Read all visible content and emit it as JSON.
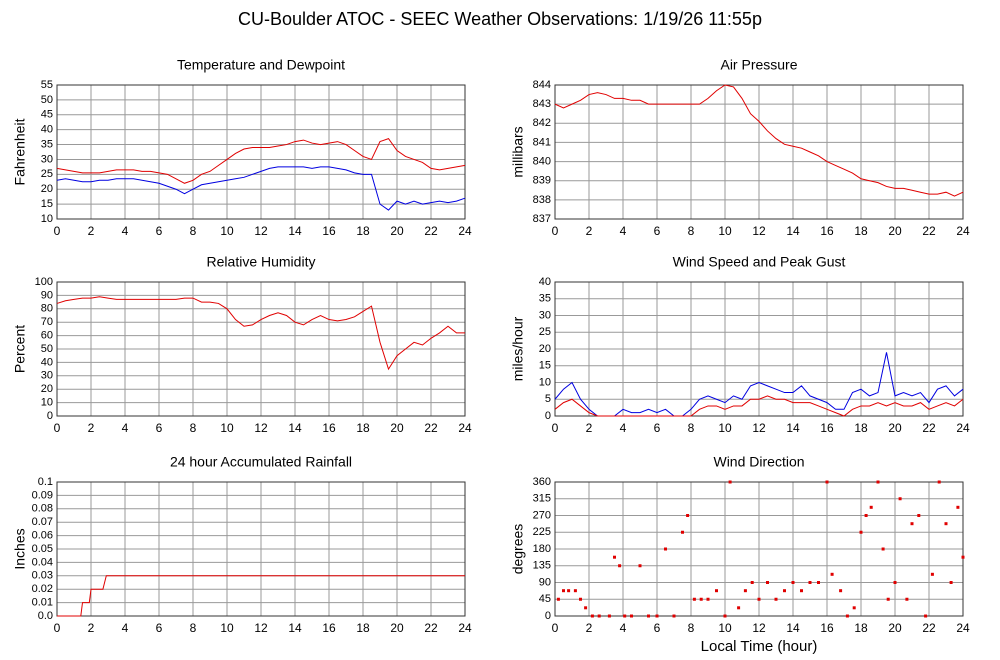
{
  "title": "CU-Boulder ATOC - SEEC Weather Observations: 1/19/26 11:55p",
  "chart_data": [
    {
      "type": "line",
      "title": "Temperature and Dewpoint",
      "ylabel": "Fahrenheit",
      "grid": true,
      "x": [
        0,
        0.5,
        1,
        1.5,
        2,
        2.5,
        3,
        3.5,
        4,
        4.5,
        5,
        5.5,
        6,
        6.5,
        7,
        7.5,
        8,
        8.5,
        9,
        9.5,
        10,
        10.5,
        11,
        11.5,
        12,
        12.5,
        13,
        13.5,
        14,
        14.5,
        15,
        15.5,
        16,
        16.5,
        17,
        17.5,
        18,
        18.5,
        19,
        19.5,
        20,
        20.5,
        21,
        21.5,
        22,
        22.5,
        23,
        23.5,
        24
      ],
      "series": [
        {
          "color": "#e00000",
          "values": [
            27,
            26.5,
            26,
            25.5,
            25.5,
            25.5,
            26,
            26.5,
            26.5,
            26.5,
            26,
            26,
            25.5,
            25,
            23.5,
            22,
            23,
            25,
            26,
            28,
            30,
            32,
            33.5,
            34,
            34,
            34,
            34.5,
            35,
            36,
            36.5,
            35.5,
            35,
            35.5,
            36,
            35,
            33,
            31,
            30,
            36,
            37,
            33,
            31,
            30,
            29,
            27,
            26.5,
            27,
            27.5,
            28
          ]
        },
        {
          "color": "#0000e0",
          "values": [
            23,
            23.5,
            23,
            22.5,
            22.5,
            23,
            23,
            23.5,
            23.5,
            23.5,
            23,
            22.5,
            22,
            21,
            20,
            18.5,
            20,
            21.5,
            22,
            22.5,
            23,
            23.5,
            24,
            25,
            26,
            27,
            27.5,
            27.5,
            27.5,
            27.5,
            27,
            27.5,
            27.5,
            27,
            26.5,
            25.5,
            25,
            25,
            15,
            13,
            16,
            15,
            16,
            15,
            15.5,
            16,
            15.5,
            16,
            17
          ]
        }
      ],
      "xlim": [
        0,
        24
      ],
      "xticks": [
        0,
        2,
        4,
        6,
        8,
        10,
        12,
        14,
        16,
        18,
        20,
        22,
        24
      ],
      "ylim": [
        10,
        55
      ],
      "yticks": [
        10,
        15,
        20,
        25,
        30,
        35,
        40,
        45,
        50,
        55
      ]
    },
    {
      "type": "line",
      "title": "Air Pressure",
      "ylabel": "millibars",
      "grid": true,
      "x": [
        0,
        0.5,
        1,
        1.5,
        2,
        2.5,
        3,
        3.5,
        4,
        4.5,
        5,
        5.5,
        6,
        6.5,
        7,
        7.5,
        8,
        8.5,
        9,
        9.5,
        10,
        10.5,
        11,
        11.5,
        12,
        12.5,
        13,
        13.5,
        14,
        14.5,
        15,
        15.5,
        16,
        16.5,
        17,
        17.5,
        18,
        18.5,
        19,
        19.5,
        20,
        20.5,
        21,
        21.5,
        22,
        22.5,
        23,
        23.5,
        24
      ],
      "series": [
        {
          "color": "#e00000",
          "values": [
            843,
            842.8,
            843,
            843.2,
            843.5,
            843.6,
            843.5,
            843.3,
            843.3,
            843.2,
            843.2,
            843,
            843,
            843,
            843,
            843,
            843,
            843,
            843.3,
            843.7,
            844,
            843.9,
            843.3,
            842.5,
            842.1,
            841.6,
            841.2,
            840.9,
            840.8,
            840.7,
            840.5,
            840.3,
            840,
            839.8,
            839.6,
            839.4,
            839.1,
            839,
            838.9,
            838.7,
            838.6,
            838.6,
            838.5,
            838.4,
            838.3,
            838.3,
            838.4,
            838.2,
            838.4
          ]
        }
      ],
      "xlim": [
        0,
        24
      ],
      "xticks": [
        0,
        2,
        4,
        6,
        8,
        10,
        12,
        14,
        16,
        18,
        20,
        22,
        24
      ],
      "ylim": [
        837,
        844
      ],
      "yticks": [
        837,
        838,
        839,
        840,
        841,
        842,
        843,
        844
      ]
    },
    {
      "type": "line",
      "title": "Relative Humidity",
      "ylabel": "Percent",
      "grid": true,
      "x": [
        0,
        0.5,
        1,
        1.5,
        2,
        2.5,
        3,
        3.5,
        4,
        4.5,
        5,
        5.5,
        6,
        6.5,
        7,
        7.5,
        8,
        8.5,
        9,
        9.5,
        10,
        10.5,
        11,
        11.5,
        12,
        12.5,
        13,
        13.5,
        14,
        14.5,
        15,
        15.5,
        16,
        16.5,
        17,
        17.5,
        18,
        18.5,
        19,
        19.5,
        20,
        20.5,
        21,
        21.5,
        22,
        22.5,
        23,
        23.5,
        24
      ],
      "series": [
        {
          "color": "#e00000",
          "values": [
            84,
            86,
            87,
            88,
            88,
            89,
            88,
            87,
            87,
            87,
            87,
            87,
            87,
            87,
            87,
            88,
            88,
            85,
            85,
            84,
            80,
            72,
            67,
            68,
            72,
            75,
            77,
            75,
            70,
            68,
            72,
            75,
            72,
            71,
            72,
            74,
            78,
            82,
            55,
            35,
            45,
            50,
            55,
            53,
            58,
            62,
            67,
            62,
            62
          ]
        }
      ],
      "xlim": [
        0,
        24
      ],
      "xticks": [
        0,
        2,
        4,
        6,
        8,
        10,
        12,
        14,
        16,
        18,
        20,
        22,
        24
      ],
      "ylim": [
        0,
        100
      ],
      "yticks": [
        0,
        10,
        20,
        30,
        40,
        50,
        60,
        70,
        80,
        90,
        100
      ]
    },
    {
      "type": "line",
      "title": "Wind Speed and Peak Gust",
      "ylabel": "miles/hour",
      "grid": true,
      "x": [
        0,
        0.5,
        1,
        1.5,
        2,
        2.5,
        3,
        3.5,
        4,
        4.5,
        5,
        5.5,
        6,
        6.5,
        7,
        7.5,
        8,
        8.5,
        9,
        9.5,
        10,
        10.5,
        11,
        11.5,
        12,
        12.5,
        13,
        13.5,
        14,
        14.5,
        15,
        15.5,
        16,
        16.5,
        17,
        17.5,
        18,
        18.5,
        19,
        19.5,
        20,
        20.5,
        21,
        21.5,
        22,
        22.5,
        23,
        23.5,
        24
      ],
      "series": [
        {
          "color": "#0000e0",
          "values": [
            5,
            8,
            10,
            5,
            2,
            0,
            0,
            0,
            2,
            1,
            1,
            2,
            1,
            2,
            0,
            0,
            2,
            5,
            6,
            5,
            4,
            6,
            5,
            9,
            10,
            9,
            8,
            7,
            7,
            9,
            6,
            5,
            4,
            2,
            2,
            7,
            8,
            6,
            7,
            19,
            6,
            7,
            6,
            7,
            4,
            8,
            9,
            6,
            8
          ]
        },
        {
          "color": "#e00000",
          "values": [
            2,
            4,
            5,
            3,
            1,
            0,
            0,
            0,
            0,
            0,
            0,
            0,
            0,
            0,
            0,
            0,
            0,
            2,
            3,
            3,
            2,
            3,
            3,
            5,
            5,
            6,
            5,
            5,
            4,
            4,
            4,
            3,
            2,
            1,
            0,
            2,
            3,
            3,
            4,
            3,
            4,
            3,
            3,
            4,
            2,
            3,
            4,
            3,
            5
          ]
        }
      ],
      "xlim": [
        0,
        24
      ],
      "xticks": [
        0,
        2,
        4,
        6,
        8,
        10,
        12,
        14,
        16,
        18,
        20,
        22,
        24
      ],
      "ylim": [
        0,
        40
      ],
      "yticks": [
        0,
        5,
        10,
        15,
        20,
        25,
        30,
        35,
        40
      ]
    },
    {
      "type": "line",
      "title": "24 hour Accumulated Rainfall",
      "ylabel": "Inches",
      "grid": true,
      "x": [
        0,
        1.4,
        1.5,
        1.9,
        2,
        2.7,
        2.9,
        24
      ],
      "series": [
        {
          "color": "#e00000",
          "values": [
            0,
            0,
            0.01,
            0.01,
            0.02,
            0.02,
            0.03,
            0.03
          ]
        }
      ],
      "xlim": [
        0,
        24
      ],
      "xticks": [
        0,
        2,
        4,
        6,
        8,
        10,
        12,
        14,
        16,
        18,
        20,
        22,
        24
      ],
      "ylim": [
        0,
        0.1
      ],
      "yticks": [
        {
          "value": 0,
          "label": "0.0"
        },
        0.01,
        0.02,
        0.03,
        0.04,
        0.05,
        0.06,
        0.07,
        0.08,
        0.09,
        0.1
      ]
    },
    {
      "type": "scatter",
      "title": "Wind Direction",
      "ylabel": "degrees",
      "xlabel": "Local Time (hour)",
      "grid": true,
      "x": [
        0.2,
        0.5,
        0.8,
        1.2,
        1.5,
        1.8,
        2.2,
        2.6,
        3.2,
        3.5,
        3.8,
        4.1,
        4.5,
        5.0,
        5.5,
        6.0,
        6.5,
        7.0,
        7.5,
        7.8,
        8.2,
        8.6,
        9.0,
        9.5,
        10.0,
        10.3,
        10.8,
        11.2,
        11.6,
        12.0,
        12.5,
        13.0,
        13.5,
        14.0,
        14.5,
        15.0,
        15.5,
        16.0,
        16.3,
        16.8,
        17.2,
        17.6,
        18.0,
        18.3,
        18.6,
        19.0,
        19.3,
        19.6,
        20.0,
        20.3,
        20.7,
        21.0,
        21.4,
        21.8,
        22.2,
        22.6,
        23.0,
        23.3,
        23.7,
        24.0
      ],
      "series": [
        {
          "color": "#e00000",
          "values": [
            45,
            68,
            68,
            68,
            45,
            22,
            0,
            0,
            0,
            158,
            135,
            0,
            0,
            135,
            0,
            0,
            180,
            0,
            225,
            270,
            45,
            45,
            45,
            68,
            0,
            360,
            22,
            68,
            90,
            45,
            90,
            45,
            68,
            90,
            68,
            90,
            90,
            360,
            112,
            68,
            0,
            22,
            225,
            270,
            292,
            360,
            180,
            45,
            90,
            315,
            45,
            248,
            270,
            0,
            112,
            360,
            248,
            90,
            292,
            158
          ]
        }
      ],
      "xlim": [
        0,
        24
      ],
      "xticks": [
        0,
        2,
        4,
        6,
        8,
        10,
        12,
        14,
        16,
        18,
        20,
        22,
        24
      ],
      "ylim": [
        0,
        360
      ],
      "yticks": [
        0,
        45,
        90,
        135,
        180,
        225,
        270,
        315,
        360
      ]
    }
  ]
}
